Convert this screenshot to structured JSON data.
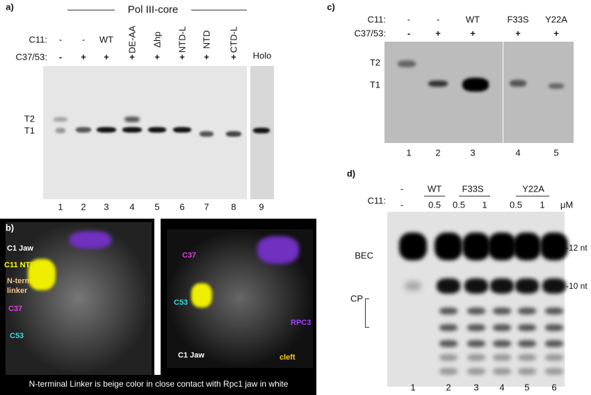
{
  "panel_a": {
    "label": "a)",
    "group_title": "Pol III-core",
    "row_labels": [
      "C11:",
      "C37/53:"
    ],
    "c11": [
      "-",
      "-",
      "WT",
      "DE-AA",
      "Δhp",
      "NTD-L",
      "NTD",
      "CTD-L"
    ],
    "c3753": [
      "-",
      "+",
      "+",
      "+",
      "+",
      "+",
      "+",
      "+"
    ],
    "holo": "Holo",
    "bands": [
      "T2",
      "T1"
    ],
    "lanes": [
      "1",
      "2",
      "3",
      "4",
      "5",
      "6",
      "7",
      "8",
      "9"
    ]
  },
  "panel_b": {
    "label": "b)",
    "left_labels": [
      "C1 Jaw",
      "C11 NTD",
      "N-term",
      "linker",
      "C37",
      "C53"
    ],
    "right_labels": [
      "C37",
      "C53",
      "RPC3",
      "C1 Jaw",
      "cleft"
    ],
    "caption": "N-terminal Linker is beige color in close contact with Rpc1 jaw in white"
  },
  "panel_c": {
    "label": "c)",
    "row_labels": [
      "C11:",
      "C37/53:"
    ],
    "c11": [
      "-",
      "-",
      "WT",
      "F33S",
      "Y22A"
    ],
    "c3753": [
      "-",
      "+",
      "+",
      "+",
      "+"
    ],
    "bands": [
      "T2",
      "T1"
    ],
    "lanes": [
      "1",
      "2",
      "3",
      "4",
      "5"
    ]
  },
  "panel_d": {
    "label": "d)",
    "row_label": "C11:",
    "groups": [
      "-",
      "WT",
      "F33S",
      "Y22A"
    ],
    "conc": [
      "-",
      "0.5",
      "0.5",
      "1",
      "0.5",
      "1"
    ],
    "unit": "μM",
    "band_labels": [
      "BEC",
      "CP"
    ],
    "sizes": [
      "-12 nt",
      "-10 nt"
    ],
    "lanes": [
      "1",
      "2",
      "3",
      "4",
      "5",
      "6"
    ]
  }
}
